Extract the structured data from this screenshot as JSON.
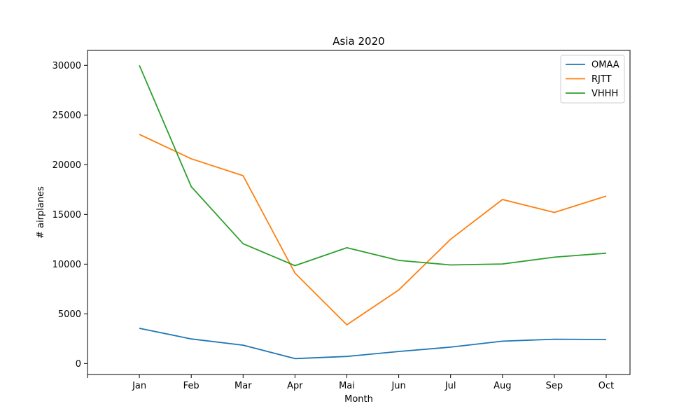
{
  "chart_data": {
    "type": "line",
    "title": "Asia 2020",
    "xlabel": "Month",
    "ylabel": "# airplanes",
    "categories": [
      "",
      "Jan",
      "Feb",
      "Mar",
      "Apr",
      "Mai",
      "Jun",
      "Jul",
      "Aug",
      "Sep",
      "Oct"
    ],
    "ylim": [
      -1100,
      31500
    ],
    "yticks": [
      0,
      5000,
      10000,
      15000,
      20000,
      25000,
      30000
    ],
    "grid": false,
    "legend_position": "top-right",
    "series": [
      {
        "name": "OMAA",
        "color": "#1f77b4",
        "values": [
          null,
          3550,
          2480,
          1850,
          500,
          720,
          1220,
          1650,
          2250,
          2450,
          2420
        ]
      },
      {
        "name": "RJTT",
        "color": "#ff7f0e",
        "values": [
          null,
          23050,
          20600,
          18900,
          9100,
          3900,
          7400,
          12500,
          16500,
          15200,
          16850
        ]
      },
      {
        "name": "VHHH",
        "color": "#2ca02c",
        "values": [
          null,
          30000,
          17800,
          12050,
          9850,
          11650,
          10380,
          9920,
          10020,
          10700,
          11100
        ]
      }
    ]
  }
}
